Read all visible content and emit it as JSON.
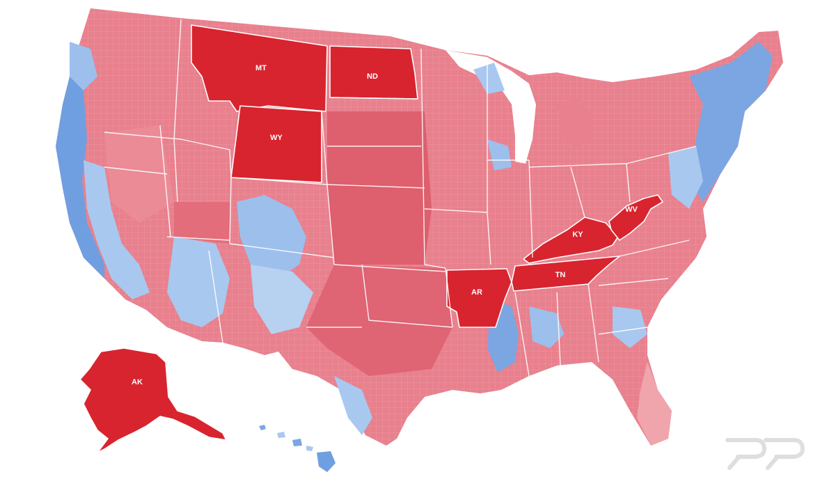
{
  "map": {
    "colors": {
      "solid_red": "#d8242f",
      "light_red": "#e56a78",
      "pink": "#f0a5ad",
      "light_blue": "#a9c8ef",
      "blue": "#5f93dc",
      "background": "#ffffff"
    },
    "highlighted_states": [
      {
        "abbr": "MT",
        "color": "#d8242f"
      },
      {
        "abbr": "ND",
        "color": "#d8242f"
      },
      {
        "abbr": "WY",
        "color": "#d8242f"
      },
      {
        "abbr": "AR",
        "color": "#d8242f"
      },
      {
        "abbr": "TN",
        "color": "#d8242f"
      },
      {
        "abbr": "KY",
        "color": "#d8242f"
      },
      {
        "abbr": "WV",
        "color": "#d8242f"
      },
      {
        "abbr": "AK",
        "color": "#d8242f"
      }
    ],
    "labels": {
      "MT": "MT",
      "ND": "ND",
      "WY": "WY",
      "AR": "AR",
      "TN": "TN",
      "KY": "KY",
      "WV": "WV",
      "AK": "AK"
    }
  },
  "watermark": {
    "name": "rr-logo"
  }
}
